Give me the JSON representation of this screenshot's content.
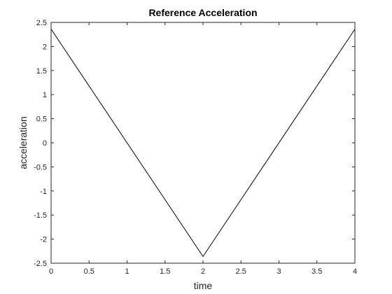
{
  "chart_data": {
    "type": "line",
    "title": "Reference Acceleration",
    "xlabel": "time",
    "ylabel": "acceleration",
    "xlim": [
      0,
      4
    ],
    "ylim": [
      -2.5,
      2.5
    ],
    "xticks": [
      0,
      0.5,
      1,
      1.5,
      2,
      2.5,
      3,
      3.5,
      4
    ],
    "xtick_labels": [
      "0",
      "0.5",
      "1",
      "1.5",
      "2",
      "2.5",
      "3",
      "3.5",
      "4"
    ],
    "yticks": [
      -2.5,
      -2,
      -1.5,
      -1,
      -0.5,
      0,
      0.5,
      1,
      1.5,
      2,
      2.5
    ],
    "ytick_labels": [
      "-2.5",
      "-2",
      "-1.5",
      "-1",
      "-0.5",
      "0",
      "0.5",
      "1",
      "1.5",
      "2",
      "2.5"
    ],
    "grid": false,
    "series": [
      {
        "x": [
          0,
          2,
          4
        ],
        "y": [
          2.36,
          -2.36,
          2.36
        ],
        "color": "#000000"
      }
    ],
    "colors": {
      "axis": "#262626",
      "line": "#000000",
      "background": "#ffffff"
    }
  }
}
